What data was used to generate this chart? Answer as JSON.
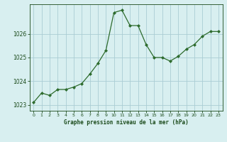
{
  "x": [
    0,
    1,
    2,
    3,
    4,
    5,
    6,
    7,
    8,
    9,
    10,
    11,
    12,
    13,
    14,
    15,
    16,
    17,
    18,
    19,
    20,
    21,
    22,
    23
  ],
  "y": [
    1023.1,
    1023.5,
    1023.4,
    1023.65,
    1023.65,
    1023.75,
    1023.9,
    1024.3,
    1024.75,
    1025.3,
    1026.9,
    1027.0,
    1026.35,
    1026.35,
    1025.55,
    1025.0,
    1025.0,
    1024.85,
    1025.05,
    1025.35,
    1025.55,
    1025.9,
    1026.1,
    1026.1
  ],
  "line_color": "#2d6b2d",
  "marker_color": "#2d6b2d",
  "bg_color": "#d8eff0",
  "grid_color": "#aacdd4",
  "xlabel": "Graphe pression niveau de la mer (hPa)",
  "xlabel_color": "#1a4a1a",
  "tick_label_color": "#1a4a1a",
  "axis_color": "#1a4a1a",
  "ylim": [
    1022.75,
    1027.25
  ],
  "yticks": [
    1023,
    1024,
    1025,
    1026
  ],
  "xlim": [
    -0.5,
    23.5
  ],
  "xticks": [
    0,
    1,
    2,
    3,
    4,
    5,
    6,
    7,
    8,
    9,
    10,
    11,
    12,
    13,
    14,
    15,
    16,
    17,
    18,
    19,
    20,
    21,
    22,
    23
  ]
}
